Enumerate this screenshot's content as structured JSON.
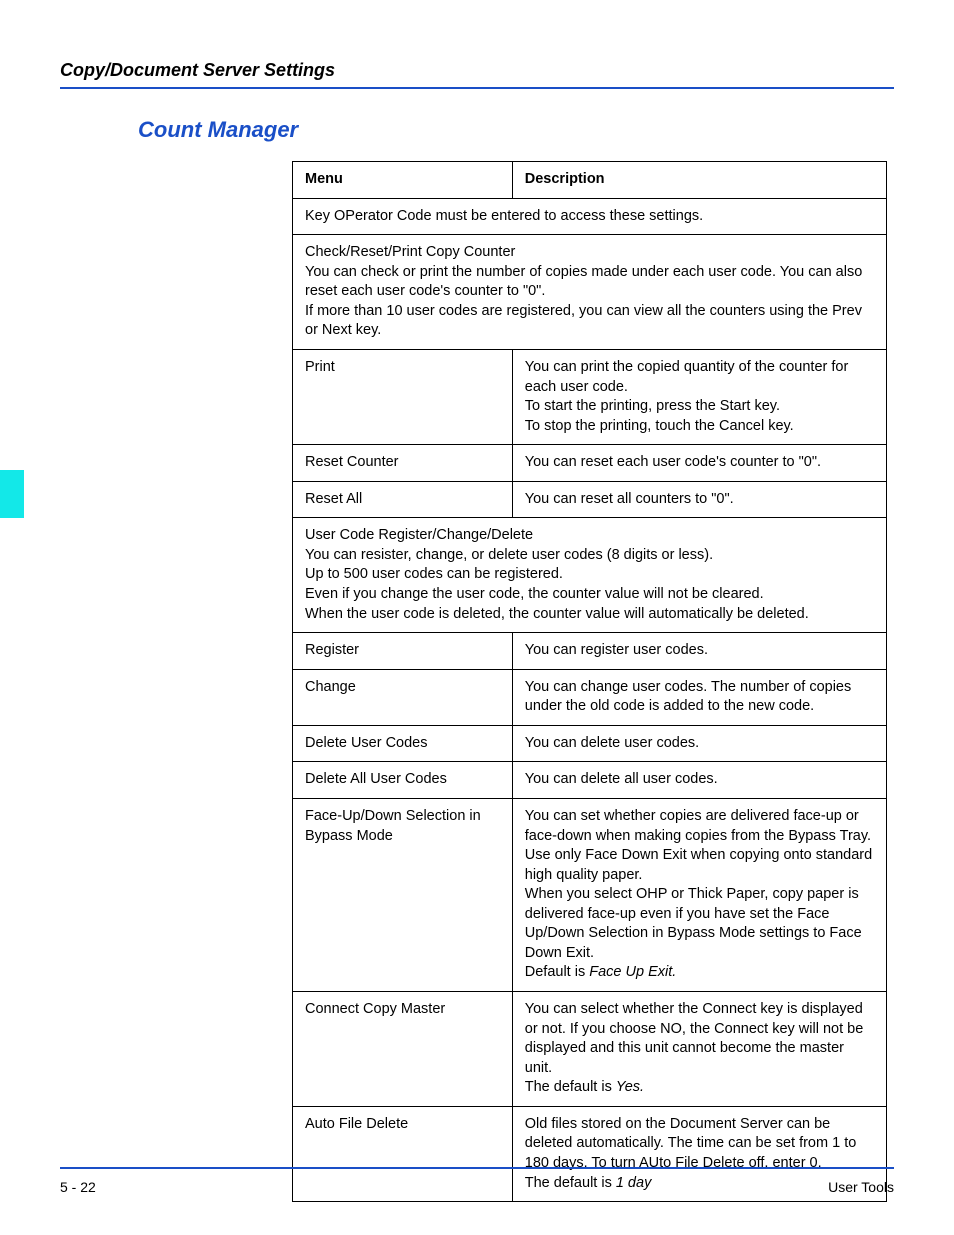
{
  "header": {
    "title": "Copy/Document Server Settings"
  },
  "section": {
    "title": "Count Manager"
  },
  "columns": {
    "menu": "Menu",
    "description": "Description"
  },
  "rows": {
    "span0": "Key OPerator Code must be entered to access these settings.",
    "span1": "Check/Reset/Print Copy Counter\nYou can check or print the number of copies made under each user code. You can also reset each user code's counter to \"0\".\nIf more than 10 user codes are registered, you can view all the counters using the Prev or Next key.",
    "r_print_m": "Print",
    "r_print_d": "You can print the copied quantity of the counter for each user code.\nTo start the printing, press the Start key.\nTo stop the printing, touch the Cancel key.",
    "r_resetc_m": "Reset Counter",
    "r_resetc_d": "You can reset each user code's counter to \"0\".",
    "r_resetall_m": "Reset All",
    "r_resetall_d": "You can reset all counters to \"0\".",
    "span2": "User Code Register/Change/Delete\nYou can resister, change, or delete user codes (8 digits or less).\nUp to 500 user codes can be registered.\nEven if you change the user code, the counter value will not be cleared.\nWhen the user code is deleted, the counter value will automatically be deleted.",
    "r_reg_m": "Register",
    "r_reg_d": "You can register user codes.",
    "r_chg_m": "Change",
    "r_chg_d": "You can change user codes. The number of copies under the old code is added to the new code.",
    "r_del_m": "Delete User Codes",
    "r_del_d": "You can delete user codes.",
    "r_delall_m": "Delete All User Codes",
    "r_delall_d": "You can delete all user codes.",
    "r_face_m": "Face-Up/Down Selection in Bypass Mode",
    "r_face_d_main": "You can set whether copies are delivered face-up or face-down when making copies from the Bypass Tray.\nUse only Face Down Exit when copying onto standard high quality paper.\nWhen you select OHP or Thick Paper, copy paper is delivered face-up even if you have set the Face Up/Down Selection in Bypass Mode settings to Face Down Exit.\nDefault is ",
    "r_face_d_ital": "Face Up Exit.",
    "r_conn_m": "Connect Copy Master",
    "r_conn_d_main": "You can select whether the Connect key is displayed or not. If you choose NO, the Connect key will not be displayed and this unit cannot become the master unit.\nThe default is ",
    "r_conn_d_ital": "Yes.",
    "r_auto_m": "Auto File Delete",
    "r_auto_d_main": "Old files stored on the Document Server can be deleted automatically. The time can be set from 1 to 180 days. To turn AUto File Delete off, enter 0.\nThe default is ",
    "r_auto_d_ital": "1 day"
  },
  "footer": {
    "left": "5 - 22",
    "right": "User Tools"
  },
  "colors": {
    "accent_blue": "#1a4fc7",
    "tab_cyan": "#13e8e8",
    "text": "#000000",
    "background": "#ffffff"
  }
}
